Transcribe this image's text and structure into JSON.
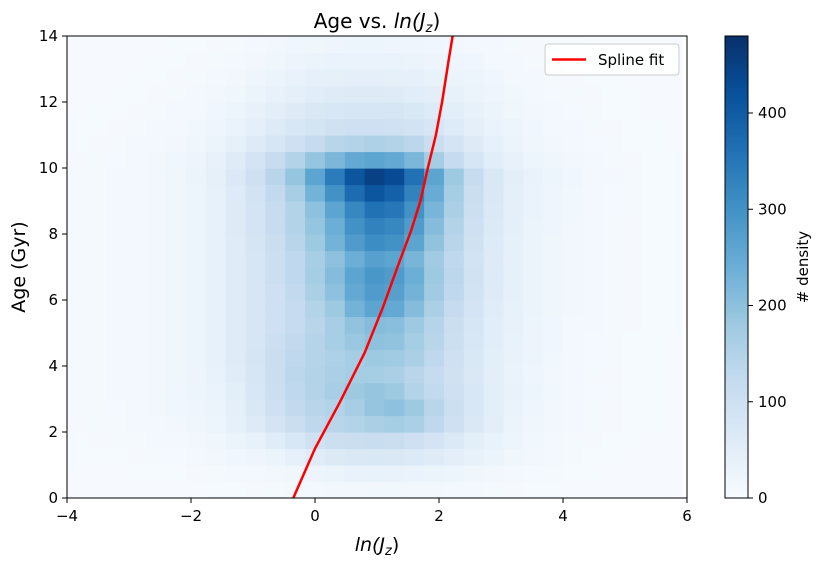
{
  "chart_data": {
    "type": "heatmap",
    "title_prefix": "Age vs. ",
    "title_math": "ln(J",
    "title_sub": "z",
    "title_suffix": ")",
    "xlabel_math": "ln(J",
    "xlabel_sub": "z",
    "xlabel_suffix": ")",
    "ylabel": "Age (Gyr)",
    "xlim": [
      -4,
      6
    ],
    "ylim": [
      0,
      14
    ],
    "xticks": [
      "−4",
      "−2",
      "0",
      "2",
      "4",
      "6"
    ],
    "yticks": [
      "0",
      "2",
      "4",
      "6",
      "8",
      "10",
      "12",
      "14"
    ],
    "colorbar": {
      "label": "# density",
      "range": [
        0,
        480
      ],
      "ticks": [
        "0",
        "100",
        "200",
        "300",
        "400"
      ],
      "tick_values": [
        0,
        100,
        200,
        300,
        400
      ],
      "colormap": "Blues"
    },
    "bins": {
      "x_start": -4,
      "x_step": 0.32,
      "nx": 31,
      "y_start": 0,
      "y_step": 0.5,
      "ny": 28
    },
    "density_grid_rows_from_age_0": [
      [
        2,
        2,
        2,
        2,
        2,
        3,
        3,
        4,
        5,
        6,
        8,
        10,
        12,
        14,
        15,
        16,
        16,
        15,
        14,
        12,
        10,
        8,
        6,
        5,
        4,
        3,
        3,
        2,
        2,
        2,
        2
      ],
      [
        3,
        3,
        3,
        4,
        4,
        5,
        6,
        8,
        10,
        12,
        15,
        20,
        25,
        30,
        33,
        35,
        34,
        32,
        28,
        24,
        20,
        15,
        12,
        9,
        7,
        5,
        4,
        3,
        3,
        2,
        2
      ],
      [
        4,
        4,
        5,
        6,
        7,
        9,
        11,
        14,
        18,
        22,
        30,
        40,
        55,
        65,
        70,
        72,
        70,
        66,
        58,
        48,
        38,
        28,
        20,
        14,
        10,
        7,
        5,
        4,
        3,
        3,
        2
      ],
      [
        5,
        6,
        7,
        8,
        10,
        12,
        15,
        20,
        28,
        38,
        55,
        75,
        95,
        105,
        110,
        112,
        110,
        100,
        85,
        68,
        50,
        35,
        24,
        16,
        11,
        8,
        6,
        5,
        4,
        3,
        3
      ],
      [
        6,
        7,
        8,
        10,
        12,
        15,
        20,
        26,
        40,
        60,
        85,
        110,
        130,
        140,
        150,
        160,
        170,
        160,
        130,
        100,
        70,
        48,
        30,
        20,
        14,
        10,
        7,
        6,
        5,
        4,
        3
      ],
      [
        7,
        8,
        9,
        11,
        14,
        17,
        22,
        30,
        45,
        70,
        100,
        125,
        140,
        150,
        165,
        190,
        200,
        180,
        140,
        105,
        75,
        50,
        32,
        22,
        15,
        11,
        8,
        6,
        5,
        4,
        3
      ],
      [
        7,
        8,
        10,
        12,
        15,
        18,
        24,
        32,
        50,
        75,
        105,
        130,
        150,
        165,
        180,
        190,
        180,
        150,
        125,
        100,
        75,
        50,
        34,
        24,
        16,
        12,
        9,
        7,
        5,
        4,
        3
      ],
      [
        7,
        8,
        10,
        12,
        15,
        19,
        25,
        35,
        55,
        80,
        110,
        135,
        150,
        160,
        170,
        170,
        160,
        140,
        120,
        95,
        70,
        48,
        32,
        22,
        15,
        11,
        8,
        6,
        5,
        4,
        3
      ],
      [
        7,
        8,
        10,
        12,
        15,
        19,
        26,
        38,
        58,
        82,
        110,
        130,
        145,
        155,
        170,
        180,
        175,
        160,
        130,
        100,
        72,
        50,
        34,
        24,
        16,
        12,
        9,
        7,
        5,
        4,
        3
      ],
      [
        7,
        8,
        10,
        12,
        15,
        19,
        26,
        38,
        58,
        80,
        105,
        125,
        145,
        165,
        185,
        200,
        195,
        170,
        140,
        105,
        75,
        52,
        35,
        25,
        17,
        12,
        9,
        7,
        5,
        4,
        3
      ],
      [
        7,
        8,
        10,
        12,
        15,
        19,
        26,
        38,
        58,
        78,
        100,
        120,
        140,
        165,
        195,
        210,
        205,
        180,
        145,
        110,
        78,
        54,
        36,
        26,
        18,
        13,
        10,
        7,
        6,
        5,
        4
      ],
      [
        7,
        8,
        10,
        12,
        15,
        19,
        26,
        38,
        58,
        78,
        100,
        120,
        150,
        180,
        230,
        260,
        250,
        210,
        160,
        120,
        85,
        56,
        38,
        27,
        19,
        14,
        10,
        8,
        6,
        5,
        4
      ],
      [
        7,
        8,
        10,
        12,
        15,
        19,
        26,
        38,
        58,
        78,
        100,
        125,
        160,
        200,
        250,
        280,
        270,
        230,
        175,
        130,
        90,
        60,
        40,
        28,
        20,
        14,
        11,
        8,
        6,
        5,
        4
      ],
      [
        7,
        8,
        10,
        12,
        15,
        19,
        26,
        38,
        58,
        80,
        105,
        130,
        170,
        210,
        260,
        290,
        280,
        240,
        180,
        135,
        92,
        62,
        42,
        29,
        20,
        15,
        11,
        8,
        6,
        5,
        4
      ],
      [
        7,
        8,
        10,
        12,
        15,
        19,
        26,
        38,
        58,
        80,
        105,
        130,
        165,
        200,
        240,
        270,
        260,
        225,
        175,
        130,
        90,
        60,
        40,
        28,
        20,
        14,
        11,
        8,
        6,
        5,
        4
      ],
      [
        7,
        8,
        10,
        12,
        15,
        19,
        26,
        38,
        58,
        82,
        110,
        140,
        180,
        230,
        280,
        310,
        300,
        260,
        195,
        140,
        95,
        62,
        42,
        29,
        20,
        15,
        11,
        8,
        6,
        5,
        4
      ],
      [
        7,
        8,
        10,
        12,
        15,
        19,
        26,
        38,
        60,
        85,
        115,
        150,
        190,
        240,
        300,
        330,
        320,
        280,
        210,
        150,
        100,
        65,
        44,
        30,
        21,
        15,
        11,
        8,
        6,
        5,
        4
      ],
      [
        7,
        8,
        10,
        12,
        15,
        19,
        26,
        38,
        60,
        85,
        115,
        150,
        200,
        260,
        320,
        360,
        350,
        300,
        225,
        160,
        105,
        68,
        45,
        31,
        22,
        16,
        12,
        9,
        7,
        5,
        4
      ],
      [
        7,
        8,
        10,
        12,
        15,
        19,
        26,
        38,
        62,
        90,
        125,
        165,
        230,
        300,
        370,
        410,
        390,
        330,
        245,
        170,
        110,
        70,
        46,
        32,
        22,
        16,
        12,
        9,
        7,
        5,
        4
      ],
      [
        7,
        8,
        10,
        12,
        15,
        20,
        28,
        42,
        68,
        100,
        140,
        190,
        260,
        340,
        410,
        450,
        430,
        360,
        260,
        180,
        115,
        72,
        47,
        33,
        23,
        17,
        13,
        10,
        7,
        5,
        4
      ],
      [
        6,
        7,
        9,
        11,
        14,
        18,
        25,
        36,
        58,
        85,
        115,
        150,
        190,
        220,
        250,
        260,
        250,
        220,
        170,
        120,
        80,
        52,
        36,
        26,
        19,
        14,
        11,
        8,
        6,
        5,
        4
      ],
      [
        5,
        6,
        8,
        10,
        12,
        15,
        20,
        28,
        42,
        60,
        80,
        100,
        120,
        140,
        150,
        155,
        150,
        135,
        110,
        85,
        60,
        40,
        28,
        20,
        15,
        11,
        9,
        7,
        5,
        4,
        3
      ],
      [
        4,
        5,
        6,
        8,
        10,
        12,
        16,
        22,
        32,
        45,
        60,
        75,
        88,
        95,
        100,
        100,
        98,
        90,
        78,
        62,
        46,
        32,
        23,
        17,
        13,
        10,
        8,
        6,
        5,
        4,
        3
      ],
      [
        3,
        4,
        5,
        6,
        8,
        10,
        13,
        18,
        26,
        36,
        48,
        60,
        70,
        76,
        80,
        80,
        78,
        72,
        62,
        50,
        38,
        27,
        20,
        15,
        11,
        9,
        7,
        5,
        4,
        3,
        3
      ],
      [
        3,
        3,
        4,
        5,
        6,
        8,
        10,
        14,
        20,
        28,
        37,
        46,
        54,
        58,
        60,
        60,
        58,
        54,
        47,
        38,
        30,
        22,
        16,
        12,
        9,
        7,
        6,
        5,
        4,
        3,
        2
      ],
      [
        2,
        3,
        3,
        4,
        5,
        6,
        8,
        11,
        15,
        21,
        28,
        34,
        40,
        43,
        45,
        45,
        43,
        40,
        35,
        29,
        23,
        17,
        13,
        10,
        8,
        6,
        5,
        4,
        3,
        3,
        2
      ],
      [
        2,
        2,
        3,
        3,
        4,
        5,
        6,
        8,
        11,
        15,
        20,
        25,
        29,
        31,
        32,
        32,
        31,
        29,
        25,
        21,
        17,
        13,
        10,
        8,
        6,
        5,
        4,
        3,
        3,
        2,
        2
      ],
      [
        2,
        2,
        2,
        3,
        3,
        4,
        5,
        6,
        8,
        11,
        14,
        17,
        20,
        22,
        23,
        23,
        22,
        21,
        18,
        15,
        12,
        10,
        8,
        6,
        5,
        4,
        3,
        3,
        2,
        2,
        2
      ]
    ],
    "series": [
      {
        "name": "Spline fit",
        "color": "#ff0000",
        "x": [
          -0.35,
          0,
          0.4,
          0.8,
          1.1,
          1.35,
          1.55,
          1.7,
          1.82,
          1.95,
          2.05,
          2.15,
          2.22
        ],
        "y": [
          0,
          1.5,
          2.9,
          4.4,
          5.8,
          7.1,
          8.1,
          9.0,
          10.0,
          11.0,
          12.0,
          13.2,
          14.0
        ]
      }
    ],
    "legend": {
      "label": "Spline fit",
      "position": "upper right"
    },
    "grid": false
  }
}
